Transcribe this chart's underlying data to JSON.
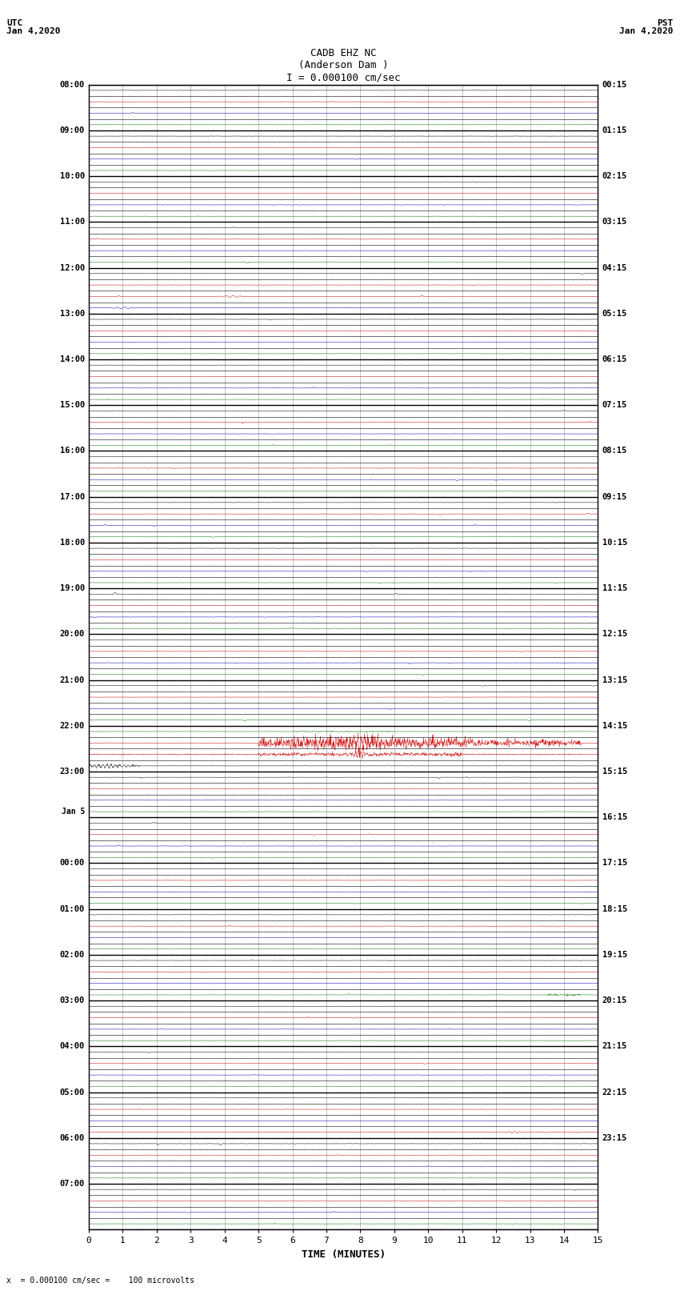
{
  "title_line1": "CADB EHZ NC",
  "title_line2": "(Anderson Dam )",
  "title_line3": "I = 0.000100 cm/sec",
  "left_label_top": "UTC",
  "left_label_date": "Jan 4,2020",
  "right_label_top": "PST",
  "right_label_date": "Jan 4,2020",
  "xlabel": "TIME (MINUTES)",
  "bottom_note": "x  = 0.000100 cm/sec =    100 microvolts",
  "utc_times_major": [
    "08:00",
    "09:00",
    "10:00",
    "11:00",
    "12:00",
    "13:00",
    "14:00",
    "15:00",
    "16:00",
    "17:00",
    "18:00",
    "19:00",
    "20:00",
    "21:00",
    "22:00",
    "23:00",
    "Jan 5",
    "00:00",
    "01:00",
    "02:00",
    "03:00",
    "04:00",
    "05:00",
    "06:00",
    "07:00"
  ],
  "pst_times_major": [
    "00:15",
    "01:15",
    "02:15",
    "03:15",
    "04:15",
    "05:15",
    "06:15",
    "07:15",
    "08:15",
    "09:15",
    "10:15",
    "11:15",
    "12:15",
    "13:15",
    "14:15",
    "15:15",
    "16:15",
    "17:15",
    "18:15",
    "19:15",
    "20:15",
    "21:15",
    "22:15",
    "23:15"
  ],
  "n_rows": 100,
  "x_min": 0,
  "x_max": 15,
  "x_ticks": [
    0,
    1,
    2,
    3,
    4,
    5,
    6,
    7,
    8,
    9,
    10,
    11,
    12,
    13,
    14,
    15
  ],
  "background_color": "#ffffff",
  "row_colors": [
    "#000000",
    "#cc0000",
    "#0000aa",
    "#007700"
  ],
  "noise_amplitude": 0.025,
  "event_row": 57,
  "event2_row": 58,
  "black_spike_row": 59,
  "green_event_row": 79,
  "late_red_row": 91
}
